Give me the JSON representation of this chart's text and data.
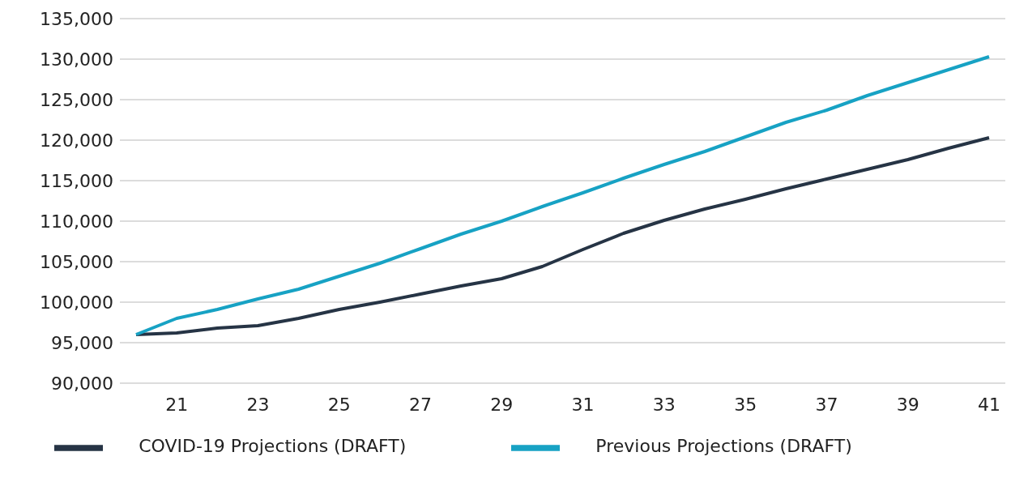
{
  "chart_data": {
    "type": "line",
    "categories": [
      null,
      "21",
      null,
      "23",
      null,
      "25",
      null,
      "27",
      null,
      "29",
      null,
      "31",
      null,
      "33",
      null,
      "35",
      null,
      "37",
      null,
      "39",
      null,
      "41"
    ],
    "series": [
      {
        "name": "COVID-19 Projections (DRAFT)",
        "color": "#263445",
        "values": [
          96000,
          96200,
          96800,
          97100,
          98000,
          99100,
          100000,
          101000,
          102000,
          102900,
          104400,
          106500,
          108500,
          110100,
          111500,
          112700,
          114000,
          115200,
          116400,
          117600,
          119000,
          120300
        ]
      },
      {
        "name": "Previous Projections (DRAFT)",
        "color": "#17a2c4",
        "values": [
          96000,
          98000,
          99100,
          100400,
          101600,
          103200,
          104800,
          106600,
          108400,
          110000,
          111800,
          113500,
          115300,
          117000,
          118600,
          120400,
          122200,
          123700,
          125500,
          127100,
          128700,
          130300
        ]
      }
    ],
    "ylim": [
      90000,
      135000
    ],
    "yticks": [
      {
        "value": 90000,
        "label": "90,000"
      },
      {
        "value": 95000,
        "label": "95,000"
      },
      {
        "value": 100000,
        "label": "100,000"
      },
      {
        "value": 105000,
        "label": "105,000"
      },
      {
        "value": 110000,
        "label": "110,000"
      },
      {
        "value": 115000,
        "label": "115,000"
      },
      {
        "value": 120000,
        "label": "120,000"
      },
      {
        "value": 125000,
        "label": "125,000"
      },
      {
        "value": 130000,
        "label": "130,000"
      },
      {
        "value": 135000,
        "label": "135,000"
      }
    ],
    "grid": "y",
    "legend": "bottom",
    "marker": "none",
    "line_style": "solid"
  }
}
